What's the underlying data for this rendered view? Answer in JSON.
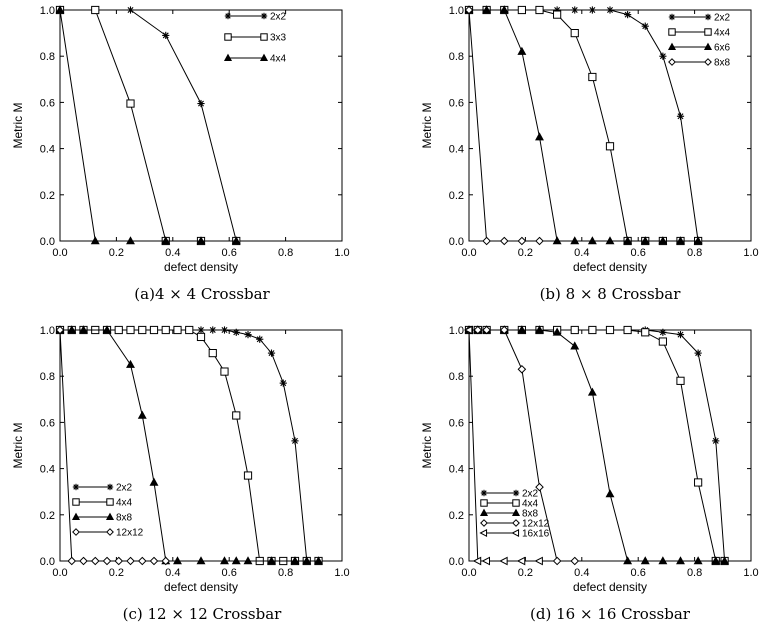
{
  "chart_data": [
    {
      "type": "line",
      "caption": "(a)4 × 4 Crossbar",
      "xlabel": "defect density",
      "ylabel": "Metric M",
      "xlim": [
        0,
        1
      ],
      "ylim": [
        0,
        1
      ],
      "xticks": [
        "0.0",
        "0.2",
        "0.4",
        "0.6",
        "0.8",
        "1.0"
      ],
      "yticks": [
        "0.0",
        "0.2",
        "0.4",
        "0.6",
        "0.8",
        "1.0"
      ],
      "grid": false,
      "legend_position": "top-right",
      "series": [
        {
          "name": "2x2",
          "marker": "star",
          "x": [
            0.0,
            0.125,
            0.25,
            0.375,
            0.5,
            0.625
          ],
          "y": [
            1.0,
            1.0,
            1.0,
            0.89,
            0.595,
            0.0
          ]
        },
        {
          "name": "3x3",
          "marker": "square",
          "x": [
            0.0,
            0.125,
            0.25,
            0.375,
            0.5,
            0.625
          ],
          "y": [
            1.0,
            1.0,
            0.595,
            0.0,
            0.0,
            0.0
          ]
        },
        {
          "name": "4x4",
          "marker": "triangle",
          "x": [
            0.0,
            0.125,
            0.25,
            0.375,
            0.5,
            0.625
          ],
          "y": [
            1.0,
            0.0,
            0.0,
            0.0,
            0.0,
            0.0
          ]
        }
      ]
    },
    {
      "type": "line",
      "caption": "(b) 8 × 8 Crossbar",
      "xlabel": "defect density",
      "ylabel": "Metric M",
      "xlim": [
        0,
        1
      ],
      "ylim": [
        0,
        1
      ],
      "xticks": [
        "0.0",
        "0.2",
        "0.4",
        "0.6",
        "0.8",
        "1.0"
      ],
      "yticks": [
        "0.0",
        "0.2",
        "0.4",
        "0.6",
        "0.8",
        "1.0"
      ],
      "grid": false,
      "legend_position": "top-right",
      "series": [
        {
          "name": "2x2",
          "marker": "star",
          "x": [
            0.0,
            0.0625,
            0.125,
            0.1875,
            0.25,
            0.3125,
            0.375,
            0.4375,
            0.5,
            0.5625,
            0.625,
            0.6875,
            0.75,
            0.8125
          ],
          "y": [
            1.0,
            1.0,
            1.0,
            1.0,
            1.0,
            1.0,
            1.0,
            1.0,
            1.0,
            0.98,
            0.93,
            0.8,
            0.54,
            0.0
          ]
        },
        {
          "name": "4x4",
          "marker": "square",
          "x": [
            0.0,
            0.0625,
            0.125,
            0.1875,
            0.25,
            0.3125,
            0.375,
            0.4375,
            0.5,
            0.5625,
            0.625,
            0.6875,
            0.75,
            0.8125
          ],
          "y": [
            1.0,
            1.0,
            1.0,
            1.0,
            1.0,
            0.98,
            0.9,
            0.71,
            0.41,
            0.0,
            0.0,
            0.0,
            0.0,
            0.0
          ]
        },
        {
          "name": "6x6",
          "marker": "triangle",
          "x": [
            0.0,
            0.0625,
            0.125,
            0.1875,
            0.25,
            0.3125,
            0.375,
            0.4375,
            0.5,
            0.5625,
            0.625,
            0.6875,
            0.75,
            0.8125
          ],
          "y": [
            1.0,
            1.0,
            1.0,
            0.82,
            0.45,
            0.0,
            0.0,
            0.0,
            0.0,
            0.0,
            0.0,
            0.0,
            0.0,
            0.0
          ]
        },
        {
          "name": "8x8",
          "marker": "diamond",
          "x": [
            0.0,
            0.0625,
            0.125,
            0.1875,
            0.25
          ],
          "y": [
            1.0,
            0.0,
            0.0,
            0.0,
            0.0
          ]
        }
      ]
    },
    {
      "type": "line",
      "caption": "(c) 12 × 12 Crossbar",
      "xlabel": "defect density",
      "ylabel": "Metric M",
      "xlim": [
        0,
        1
      ],
      "ylim": [
        0,
        1
      ],
      "xticks": [
        "0.0",
        "0.2",
        "0.4",
        "0.6",
        "0.8",
        "1.0"
      ],
      "yticks": [
        "0.0",
        "0.2",
        "0.4",
        "0.6",
        "0.8",
        "1.0"
      ],
      "grid": false,
      "legend_position": "bottom-left",
      "series": [
        {
          "name": "2x2",
          "marker": "star",
          "x": [
            0.0,
            0.0417,
            0.0833,
            0.125,
            0.1667,
            0.2083,
            0.25,
            0.2917,
            0.3333,
            0.375,
            0.4167,
            0.4583,
            0.5,
            0.5417,
            0.5833,
            0.625,
            0.6667,
            0.7083,
            0.75,
            0.7917,
            0.8333,
            0.875,
            0.9167
          ],
          "y": [
            1.0,
            1.0,
            1.0,
            1.0,
            1.0,
            1.0,
            1.0,
            1.0,
            1.0,
            1.0,
            1.0,
            1.0,
            1.0,
            1.0,
            1.0,
            0.99,
            0.98,
            0.96,
            0.9,
            0.77,
            0.52,
            0.0,
            0.0
          ]
        },
        {
          "name": "4x4",
          "marker": "square",
          "x": [
            0.0,
            0.0417,
            0.0833,
            0.125,
            0.1667,
            0.2083,
            0.25,
            0.2917,
            0.3333,
            0.375,
            0.4167,
            0.4583,
            0.5,
            0.5417,
            0.5833,
            0.625,
            0.6667,
            0.7083,
            0.75,
            0.7917,
            0.8333,
            0.875,
            0.9167
          ],
          "y": [
            1.0,
            1.0,
            1.0,
            1.0,
            1.0,
            1.0,
            1.0,
            1.0,
            1.0,
            1.0,
            1.0,
            1.0,
            0.97,
            0.9,
            0.82,
            0.63,
            0.37,
            0.0,
            0.0,
            0.0,
            0.0,
            0.0,
            0.0
          ]
        },
        {
          "name": "8x8",
          "marker": "triangle",
          "x": [
            0.0,
            0.0417,
            0.0833,
            0.1667,
            0.25,
            0.2917,
            0.3333,
            0.375,
            0.4167,
            0.5,
            0.5833,
            0.625,
            0.6667,
            0.75,
            0.8333,
            0.875,
            0.9167
          ],
          "y": [
            1.0,
            1.0,
            1.0,
            1.0,
            0.85,
            0.63,
            0.34,
            0.0,
            0.0,
            0.0,
            0.0,
            0.0,
            0.0,
            0.0,
            0.0,
            0.0,
            0.0
          ]
        },
        {
          "name": "12x12",
          "marker": "diamond",
          "x": [
            0.0,
            0.0417,
            0.0833,
            0.125,
            0.1667,
            0.2083,
            0.25,
            0.2917,
            0.3333,
            0.375
          ],
          "y": [
            1.0,
            0.0,
            0.0,
            0.0,
            0.0,
            0.0,
            0.0,
            0.0,
            0.0,
            0.0
          ]
        }
      ]
    },
    {
      "type": "line",
      "caption": "(d) 16 × 16 Crossbar",
      "xlabel": "defect density",
      "ylabel": "Metric M",
      "xlim": [
        0,
        1
      ],
      "ylim": [
        0,
        1
      ],
      "xticks": [
        "0.0",
        "0.2",
        "0.4",
        "0.6",
        "0.8",
        "1.0"
      ],
      "yticks": [
        "0.0",
        "0.2",
        "0.4",
        "0.6",
        "0.8",
        "1.0"
      ],
      "grid": false,
      "legend_position": "bottom-left",
      "series": [
        {
          "name": "2x2",
          "marker": "star",
          "x": [
            0.0,
            0.0313,
            0.0625,
            0.125,
            0.1875,
            0.25,
            0.3125,
            0.375,
            0.4375,
            0.5,
            0.5625,
            0.625,
            0.6875,
            0.75,
            0.8125,
            0.875,
            0.9063
          ],
          "y": [
            1.0,
            1.0,
            1.0,
            1.0,
            1.0,
            1.0,
            1.0,
            1.0,
            1.0,
            1.0,
            1.0,
            1.0,
            0.99,
            0.98,
            0.9,
            0.52,
            0.0
          ]
        },
        {
          "name": "4x4",
          "marker": "square",
          "x": [
            0.0,
            0.0313,
            0.0625,
            0.125,
            0.1875,
            0.25,
            0.3125,
            0.375,
            0.4375,
            0.5,
            0.5625,
            0.625,
            0.6875,
            0.75,
            0.8125,
            0.875,
            0.9063
          ],
          "y": [
            1.0,
            1.0,
            1.0,
            1.0,
            1.0,
            1.0,
            1.0,
            1.0,
            1.0,
            1.0,
            1.0,
            0.99,
            0.95,
            0.78,
            0.34,
            0.0,
            0.0
          ]
        },
        {
          "name": "8x8",
          "marker": "triangle",
          "x": [
            0.0,
            0.0313,
            0.0625,
            0.125,
            0.1875,
            0.25,
            0.3125,
            0.375,
            0.4375,
            0.5,
            0.5625,
            0.625,
            0.6875,
            0.75,
            0.8125,
            0.875,
            0.9063
          ],
          "y": [
            1.0,
            1.0,
            1.0,
            1.0,
            1.0,
            1.0,
            0.99,
            0.93,
            0.73,
            0.29,
            0.0,
            0.0,
            0.0,
            0.0,
            0.0,
            0.0,
            0.0
          ]
        },
        {
          "name": "12x12",
          "marker": "diamond",
          "x": [
            0.0,
            0.0313,
            0.0625,
            0.125,
            0.1875,
            0.25,
            0.3125,
            0.375
          ],
          "y": [
            1.0,
            1.0,
            1.0,
            1.0,
            0.83,
            0.32,
            0.0,
            0.0
          ]
        },
        {
          "name": "16x16",
          "marker": "triangle-left",
          "x": [
            0.0,
            0.0313,
            0.0625,
            0.125,
            0.1875,
            0.25
          ],
          "y": [
            1.0,
            0.0,
            0.0,
            0.0,
            0.0,
            0.0
          ]
        }
      ]
    }
  ]
}
